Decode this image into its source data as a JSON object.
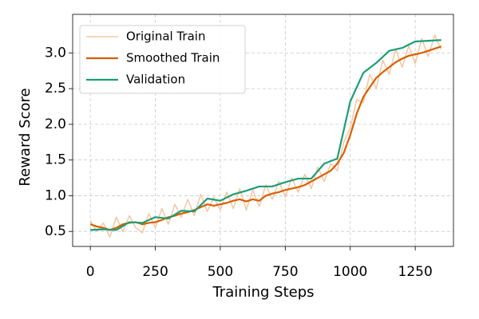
{
  "chart_data": {
    "type": "line",
    "x_label": "Training Steps",
    "y_label": "Reward Score",
    "xlim": [
      -68,
      1397
    ],
    "ylim": [
      0.29,
      3.54
    ],
    "xticks": [
      0,
      250,
      500,
      750,
      1000,
      1250
    ],
    "yticks": [
      0.5,
      {
        "value": 1.0,
        "label": "1.0"
      },
      1.5,
      {
        "value": 2.0,
        "label": "2.0"
      },
      2.5,
      {
        "value": 3.0,
        "label": "3.0"
      }
    ],
    "grid": true,
    "legend": "upper left",
    "series": [
      {
        "name": "Original Train",
        "color": "#f5c6a2",
        "x": [
          0,
          25,
          50,
          75,
          100,
          125,
          150,
          175,
          200,
          225,
          250,
          275,
          300,
          325,
          350,
          375,
          400,
          425,
          450,
          475,
          500,
          525,
          550,
          575,
          600,
          625,
          650,
          675,
          700,
          725,
          750,
          775,
          800,
          825,
          850,
          875,
          900,
          925,
          950,
          975,
          1000,
          1025,
          1050,
          1075,
          1100,
          1125,
          1150,
          1175,
          1200,
          1225,
          1250,
          1275,
          1300,
          1325,
          1350
        ],
        "values": [
          0.65,
          0.5,
          0.62,
          0.42,
          0.7,
          0.5,
          0.72,
          0.55,
          0.48,
          0.75,
          0.55,
          0.82,
          0.6,
          0.88,
          0.7,
          0.95,
          0.72,
          1.02,
          0.78,
          0.98,
          0.8,
          1.05,
          0.82,
          1.1,
          0.8,
          1.08,
          0.85,
          1.15,
          0.95,
          1.2,
          0.98,
          1.25,
          1.05,
          1.3,
          1.1,
          1.4,
          1.2,
          1.45,
          1.35,
          1.75,
          1.95,
          2.35,
          2.3,
          2.7,
          2.5,
          2.9,
          2.7,
          3.05,
          2.8,
          3.1,
          2.85,
          3.2,
          2.95,
          3.25,
          3.05
        ]
      },
      {
        "name": "Smoothed Train",
        "color": "#d95f02",
        "x": [
          0,
          25,
          50,
          75,
          100,
          125,
          150,
          175,
          200,
          225,
          250,
          275,
          300,
          325,
          350,
          375,
          400,
          425,
          450,
          475,
          500,
          525,
          550,
          575,
          600,
          625,
          650,
          675,
          700,
          725,
          750,
          775,
          800,
          825,
          850,
          875,
          900,
          925,
          950,
          975,
          1000,
          1025,
          1050,
          1075,
          1100,
          1125,
          1150,
          1175,
          1200,
          1225,
          1250,
          1275,
          1300,
          1325,
          1350
        ],
        "values": [
          0.6,
          0.57,
          0.55,
          0.52,
          0.55,
          0.6,
          0.62,
          0.63,
          0.6,
          0.62,
          0.63,
          0.66,
          0.7,
          0.72,
          0.75,
          0.77,
          0.8,
          0.84,
          0.88,
          0.86,
          0.88,
          0.9,
          0.93,
          0.95,
          0.92,
          0.95,
          0.93,
          1.0,
          1.03,
          1.05,
          1.08,
          1.1,
          1.12,
          1.15,
          1.2,
          1.25,
          1.3,
          1.35,
          1.45,
          1.6,
          1.85,
          2.15,
          2.38,
          2.52,
          2.65,
          2.73,
          2.8,
          2.87,
          2.92,
          2.96,
          2.98,
          3.0,
          3.03,
          3.06,
          3.09
        ]
      },
      {
        "name": "Validation",
        "color": "#1b9e77",
        "x": [
          0,
          50,
          100,
          150,
          200,
          250,
          300,
          350,
          400,
          450,
          500,
          550,
          600,
          650,
          700,
          750,
          800,
          850,
          900,
          950,
          1000,
          1050,
          1100,
          1150,
          1200,
          1250,
          1300,
          1350
        ],
        "values": [
          0.52,
          0.53,
          0.52,
          0.63,
          0.62,
          0.7,
          0.68,
          0.79,
          0.78,
          0.96,
          0.93,
          1.02,
          1.07,
          1.13,
          1.13,
          1.19,
          1.24,
          1.24,
          1.45,
          1.52,
          2.32,
          2.72,
          2.86,
          3.03,
          3.07,
          3.16,
          3.17,
          3.18
        ]
      }
    ]
  }
}
